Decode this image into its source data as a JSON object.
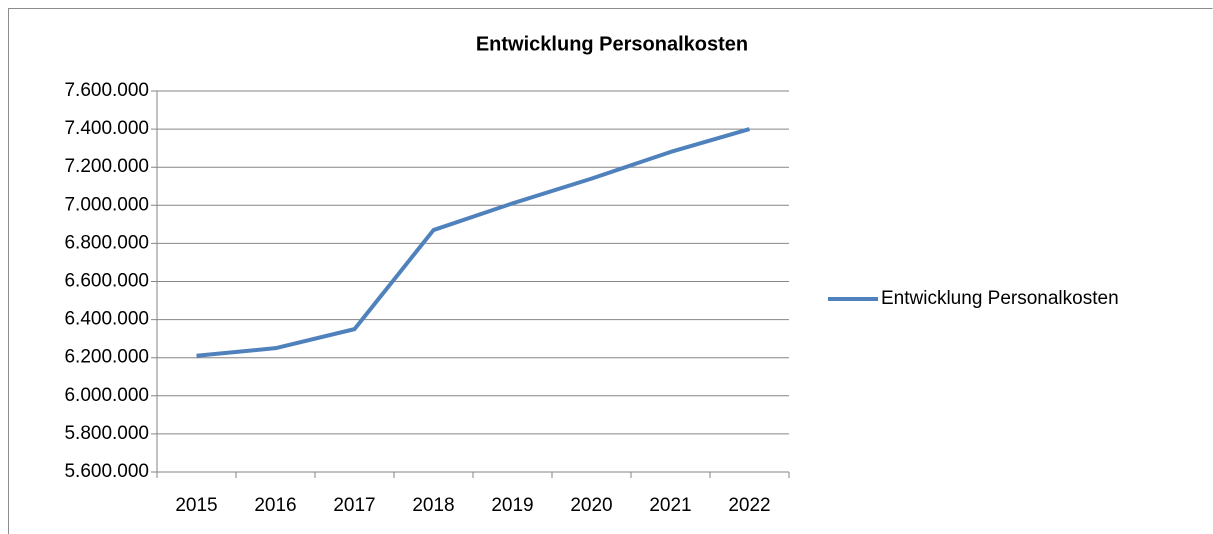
{
  "chart_data": {
    "type": "line",
    "title": "Entwicklung Personalkosten",
    "categories": [
      "2015",
      "2016",
      "2017",
      "2018",
      "2019",
      "2020",
      "2021",
      "2022"
    ],
    "series": [
      {
        "name": "Entwicklung Personalkosten",
        "color": "#4f81bd",
        "values": [
          6210000,
          6250000,
          6350000,
          6870000,
          7010000,
          7140000,
          7280000,
          7400000
        ]
      }
    ],
    "ylim": [
      5600000,
      7600000
    ],
    "yticks": [
      {
        "value": 5600000,
        "label": "5.600.000"
      },
      {
        "value": 5800000,
        "label": "5.800.000"
      },
      {
        "value": 6000000,
        "label": "6.000.000"
      },
      {
        "value": 6200000,
        "label": "6.200.000"
      },
      {
        "value": 6400000,
        "label": "6.400.000"
      },
      {
        "value": 6600000,
        "label": "6.600.000"
      },
      {
        "value": 6800000,
        "label": "6.800.000"
      },
      {
        "value": 7000000,
        "label": "7.000.000"
      },
      {
        "value": 7200000,
        "label": "7.200.000"
      },
      {
        "value": 7400000,
        "label": "7.400.000"
      },
      {
        "value": 7600000,
        "label": "7.600.000"
      }
    ],
    "grid": true,
    "legend": "right"
  }
}
